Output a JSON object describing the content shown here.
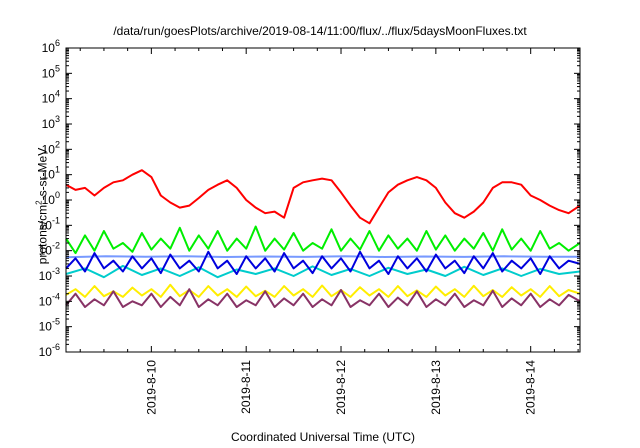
{
  "chart_data": {
    "type": "line",
    "title": "/data/run/goesPlots/archive/2019-08-14/11:00/flux/../flux/5daysMoonFluxes.txt",
    "xlabel": "Coordinated Universal Time (UTC)",
    "ylabel_parts": [
      "protons/cm",
      "2",
      "-s-sr-MeV"
    ],
    "y_scale": "log",
    "ylim": [
      1e-06,
      1000000.0
    ],
    "y_ticks": [
      {
        "exp": "-6"
      },
      {
        "exp": "-5"
      },
      {
        "exp": "-4"
      },
      {
        "exp": "-3"
      },
      {
        "exp": "-2"
      },
      {
        "exp": "-1"
      },
      {
        "exp": "0"
      },
      {
        "exp": "1"
      },
      {
        "exp": "2"
      },
      {
        "exp": "3"
      },
      {
        "exp": "4"
      },
      {
        "exp": "5"
      },
      {
        "exp": "6"
      }
    ],
    "y_tick_base": "10",
    "xlim_days": [
      9.1,
      14.52
    ],
    "x_ticks": [
      {
        "label": "2019-8-10",
        "day": 10
      },
      {
        "label": "2019-8-11",
        "day": 11
      },
      {
        "label": "2019-8-12",
        "day": 12
      },
      {
        "label": "2019-8-13",
        "day": 13
      },
      {
        "label": "2019-8-14",
        "day": 14
      }
    ],
    "grid": false,
    "series": [
      {
        "color": "#ff0000",
        "x": [
          9.1,
          9.2,
          9.3,
          9.4,
          9.5,
          9.6,
          9.7,
          9.8,
          9.9,
          10.0,
          10.1,
          10.2,
          10.3,
          10.4,
          10.5,
          10.6,
          10.7,
          10.8,
          10.9,
          11.0,
          11.1,
          11.2,
          11.3,
          11.4,
          11.5,
          11.6,
          11.7,
          11.8,
          11.9,
          12.0,
          12.1,
          12.2,
          12.3,
          12.4,
          12.5,
          12.6,
          12.7,
          12.8,
          12.9,
          13.0,
          13.1,
          13.2,
          13.3,
          13.4,
          13.5,
          13.6,
          13.7,
          13.8,
          13.9,
          14.0,
          14.1,
          14.2,
          14.3,
          14.4,
          14.52
        ],
        "y": [
          4,
          2.5,
          3,
          1.5,
          3,
          5,
          6,
          10,
          15,
          8,
          1.5,
          0.8,
          0.5,
          0.6,
          1.2,
          2.5,
          4,
          6,
          3,
          1,
          0.5,
          0.3,
          0.35,
          0.2,
          3,
          5,
          6,
          7,
          6,
          2,
          0.6,
          0.2,
          0.12,
          0.5,
          2,
          4,
          6,
          8,
          6,
          3,
          0.8,
          0.3,
          0.2,
          0.35,
          0.8,
          3,
          5,
          5,
          4,
          1.5,
          1,
          0.6,
          0.4,
          0.3,
          0.6
        ]
      },
      {
        "color": "#00ee00",
        "x": [
          9.1,
          9.2,
          9.3,
          9.4,
          9.5,
          9.6,
          9.7,
          9.8,
          9.9,
          10.0,
          10.1,
          10.2,
          10.3,
          10.4,
          10.5,
          10.6,
          10.7,
          10.8,
          10.9,
          11.0,
          11.1,
          11.2,
          11.3,
          11.4,
          11.5,
          11.6,
          11.7,
          11.8,
          11.9,
          12.0,
          12.1,
          12.2,
          12.3,
          12.4,
          12.5,
          12.6,
          12.7,
          12.8,
          12.9,
          13.0,
          13.1,
          13.2,
          13.3,
          13.4,
          13.5,
          13.6,
          13.7,
          13.8,
          13.9,
          14.0,
          14.1,
          14.2,
          14.3,
          14.4,
          14.52
        ],
        "y": [
          0.03,
          0.008,
          0.04,
          0.01,
          0.06,
          0.012,
          0.02,
          0.009,
          0.05,
          0.011,
          0.03,
          0.012,
          0.08,
          0.01,
          0.04,
          0.012,
          0.06,
          0.01,
          0.03,
          0.012,
          0.09,
          0.01,
          0.03,
          0.011,
          0.05,
          0.01,
          0.02,
          0.012,
          0.07,
          0.01,
          0.03,
          0.011,
          0.06,
          0.01,
          0.04,
          0.012,
          0.03,
          0.01,
          0.06,
          0.011,
          0.04,
          0.01,
          0.03,
          0.012,
          0.05,
          0.01,
          0.07,
          0.011,
          0.03,
          0.01,
          0.06,
          0.012,
          0.02,
          0.01,
          0.02
        ]
      },
      {
        "color": "#00cccc",
        "x": [
          9.1,
          9.3,
          9.5,
          9.7,
          9.9,
          10.1,
          10.3,
          10.5,
          10.7,
          10.9,
          11.1,
          11.3,
          11.5,
          11.7,
          11.9,
          12.1,
          12.3,
          12.5,
          12.7,
          12.9,
          13.1,
          13.3,
          13.5,
          13.7,
          13.9,
          14.1,
          14.3,
          14.52
        ],
        "y": [
          0.0012,
          0.002,
          0.0009,
          0.0025,
          0.0011,
          0.002,
          0.001,
          0.0022,
          0.0009,
          0.0018,
          0.0012,
          0.002,
          0.001,
          0.0024,
          0.0011,
          0.0019,
          0.001,
          0.0021,
          0.0012,
          0.0018,
          0.001,
          0.0023,
          0.0011,
          0.002,
          0.001,
          0.0019,
          0.0012,
          0.0015
        ]
      },
      {
        "color": "#7799ff",
        "x": [
          9.1,
          9.52,
          9.94,
          10.36,
          10.78,
          11.2,
          11.62,
          12.04,
          12.46,
          12.88,
          13.3,
          13.72,
          14.14,
          14.52
        ],
        "y": [
          0.0055,
          0.006,
          0.0058,
          0.006,
          0.0056,
          0.0059,
          0.0057,
          0.006,
          0.0056,
          0.0059,
          0.0057,
          0.006,
          0.0058,
          0.0058
        ]
      },
      {
        "color": "#0000dd",
        "x": [
          9.1,
          9.2,
          9.3,
          9.4,
          9.5,
          9.6,
          9.7,
          9.8,
          9.9,
          10.0,
          10.1,
          10.2,
          10.3,
          10.4,
          10.5,
          10.6,
          10.7,
          10.8,
          10.9,
          11.0,
          11.1,
          11.2,
          11.3,
          11.4,
          11.5,
          11.6,
          11.7,
          11.8,
          11.9,
          12.0,
          12.1,
          12.2,
          12.3,
          12.4,
          12.5,
          12.6,
          12.7,
          12.8,
          12.9,
          13.0,
          13.1,
          13.2,
          13.3,
          13.4,
          13.5,
          13.6,
          13.7,
          13.8,
          13.9,
          14.0,
          14.1,
          14.2,
          14.3,
          14.4,
          14.52
        ],
        "y": [
          0.002,
          0.005,
          0.0015,
          0.008,
          0.002,
          0.004,
          0.0015,
          0.006,
          0.002,
          0.005,
          0.0013,
          0.007,
          0.002,
          0.004,
          0.0015,
          0.009,
          0.002,
          0.004,
          0.0012,
          0.006,
          0.002,
          0.005,
          0.0015,
          0.008,
          0.002,
          0.004,
          0.0013,
          0.006,
          0.002,
          0.005,
          0.0015,
          0.009,
          0.002,
          0.004,
          0.0012,
          0.006,
          0.002,
          0.005,
          0.0015,
          0.007,
          0.002,
          0.004,
          0.0013,
          0.006,
          0.002,
          0.008,
          0.0015,
          0.004,
          0.002,
          0.005,
          0.0012,
          0.006,
          0.002,
          0.004,
          0.003
        ]
      },
      {
        "color": "#ffee00",
        "x": [
          9.1,
          9.2,
          9.3,
          9.4,
          9.5,
          9.6,
          9.7,
          9.8,
          9.9,
          10.0,
          10.1,
          10.2,
          10.3,
          10.4,
          10.5,
          10.6,
          10.7,
          10.8,
          10.9,
          11.0,
          11.1,
          11.2,
          11.3,
          11.4,
          11.5,
          11.6,
          11.7,
          11.8,
          11.9,
          12.0,
          12.1,
          12.2,
          12.3,
          12.4,
          12.5,
          12.6,
          12.7,
          12.8,
          12.9,
          13.0,
          13.1,
          13.2,
          13.3,
          13.4,
          13.5,
          13.6,
          13.7,
          13.8,
          13.9,
          14.0,
          14.1,
          14.2,
          14.3,
          14.4,
          14.52
        ],
        "y": [
          0.00018,
          0.0003,
          0.00015,
          0.0004,
          0.00016,
          0.00025,
          0.00015,
          0.00035,
          0.00017,
          0.0003,
          0.00015,
          0.00045,
          0.00016,
          0.00028,
          0.00015,
          0.0004,
          0.00017,
          0.0003,
          0.00015,
          0.00038,
          0.00016,
          0.00026,
          0.00015,
          0.0004,
          0.00017,
          0.0003,
          0.00015,
          0.00042,
          0.00016,
          0.00028,
          0.00015,
          0.00036,
          0.00017,
          0.0003,
          0.00015,
          0.0004,
          0.00016,
          0.00027,
          0.00015,
          0.00038,
          0.00017,
          0.0003,
          0.00015,
          0.00041,
          0.00016,
          0.00028,
          0.00015,
          0.00036,
          0.00017,
          0.0003,
          0.00015,
          0.0004,
          0.00016,
          0.00028,
          0.0002
        ]
      },
      {
        "color": "#883366",
        "x": [
          9.1,
          9.2,
          9.3,
          9.4,
          9.5,
          9.6,
          9.7,
          9.8,
          9.9,
          10.0,
          10.1,
          10.2,
          10.3,
          10.4,
          10.5,
          10.6,
          10.7,
          10.8,
          10.9,
          11.0,
          11.1,
          11.2,
          11.3,
          11.4,
          11.5,
          11.6,
          11.7,
          11.8,
          11.9,
          12.0,
          12.1,
          12.2,
          12.3,
          12.4,
          12.5,
          12.6,
          12.7,
          12.8,
          12.9,
          13.0,
          13.1,
          13.2,
          13.3,
          13.4,
          13.5,
          13.6,
          13.7,
          13.8,
          13.9,
          14.0,
          14.1,
          14.2,
          14.3,
          14.4,
          14.52
        ],
        "y": [
          7e-05,
          0.0002,
          6e-05,
          0.00012,
          7e-05,
          0.00025,
          6e-05,
          0.0001,
          7e-05,
          0.0002,
          6e-05,
          0.00015,
          7e-05,
          0.0003,
          6e-05,
          0.00012,
          7e-05,
          0.0002,
          6e-05,
          0.00011,
          7e-05,
          0.00025,
          6e-05,
          0.00013,
          7e-05,
          0.0002,
          6e-05,
          0.00012,
          7e-05,
          0.00028,
          6e-05,
          0.00011,
          7e-05,
          0.0002,
          6e-05,
          0.00014,
          7e-05,
          0.00025,
          6e-05,
          0.00012,
          7e-05,
          0.0002,
          6e-05,
          0.00011,
          7e-05,
          0.00026,
          6e-05,
          0.00013,
          7e-05,
          0.0002,
          6e-05,
          0.00012,
          7e-05,
          0.00018,
          0.0001
        ]
      }
    ]
  }
}
